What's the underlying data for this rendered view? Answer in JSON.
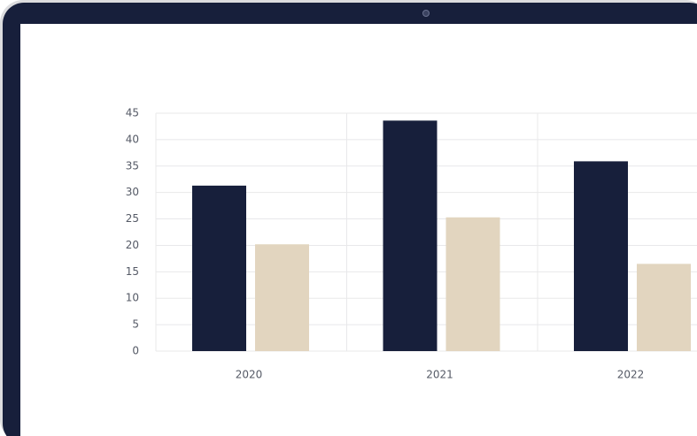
{
  "chart_data": {
    "type": "bar",
    "categories": [
      "2020",
      "2021",
      "2022"
    ],
    "series": [
      {
        "color": "#171f3b",
        "values": [
          31.3,
          43.6,
          35.9
        ]
      },
      {
        "color": "#e2d5bf",
        "values": [
          20.2,
          25.3,
          16.5
        ]
      }
    ],
    "ylim": [
      0,
      45
    ],
    "yticks": [
      0,
      5,
      10,
      15,
      20,
      25,
      30,
      35,
      40,
      45
    ],
    "grid": true
  }
}
